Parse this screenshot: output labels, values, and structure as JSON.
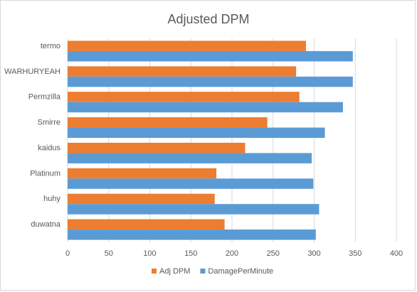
{
  "chart_data": {
    "type": "bar",
    "orientation": "horizontal",
    "title": "Adjusted DPM",
    "xlabel": "",
    "ylabel": "",
    "categories": [
      "termo",
      "WARHURYEAH",
      "Permzilla",
      "Smirre",
      "kaidus",
      "Platinum",
      "huhy",
      "duwatna"
    ],
    "series": [
      {
        "name": "Adj DPM",
        "color": "#ed7d31",
        "values": [
          290,
          278,
          282,
          243,
          216,
          181,
          179,
          191
        ]
      },
      {
        "name": "DamagePerMinute",
        "color": "#5b9bd5",
        "values": [
          347,
          347,
          335,
          313,
          297,
          299,
          306,
          302
        ]
      }
    ],
    "xlim": [
      0,
      400
    ],
    "xticks": [
      0,
      50,
      100,
      150,
      200,
      250,
      300,
      350,
      400
    ],
    "grid": true,
    "legend_position": "bottom"
  }
}
